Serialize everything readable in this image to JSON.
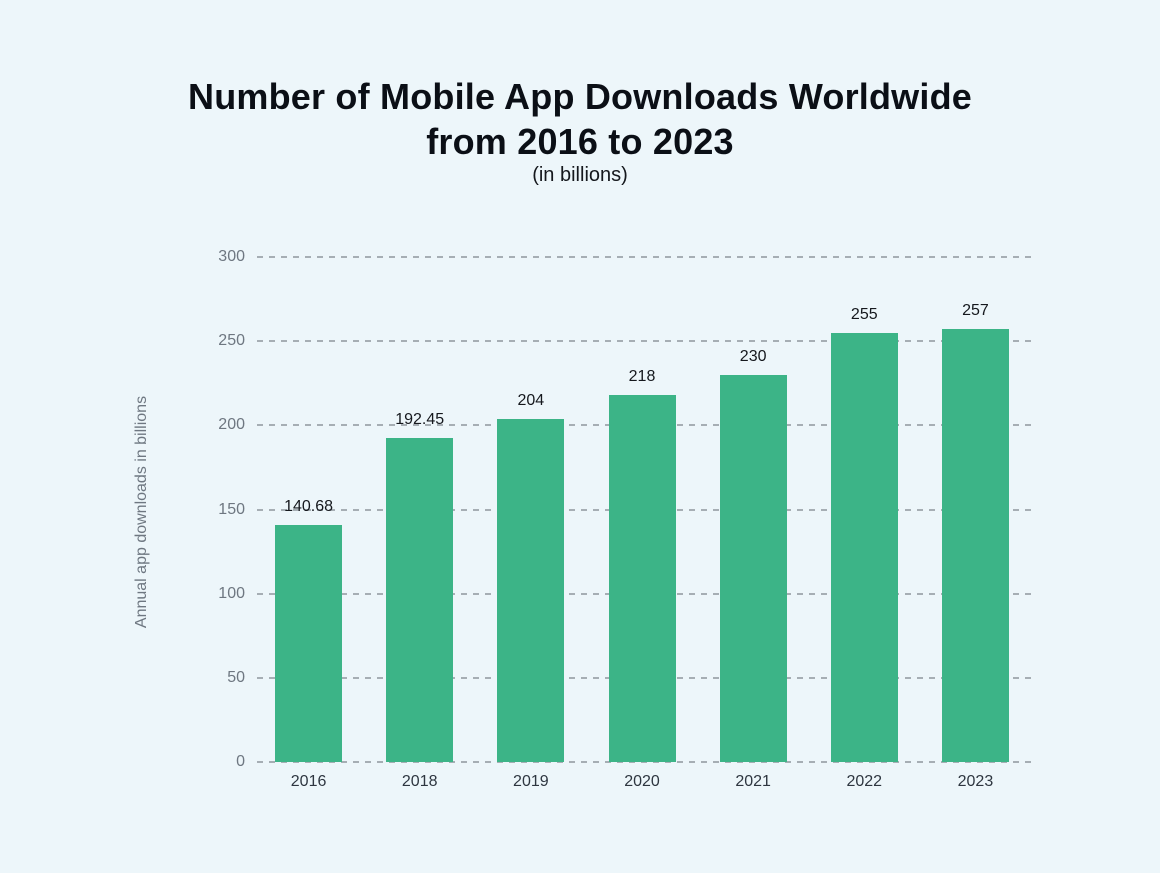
{
  "header": {
    "title_line1": "Number of Mobile App Downloads Worldwide",
    "title_line2": "from 2016 to 2023",
    "subtitle": "(in billions)"
  },
  "chart_data": {
    "type": "bar",
    "title": "Number of Mobile App Downloads Worldwide from 2016 to 2023",
    "subtitle": "(in billions)",
    "categories": [
      "2016",
      "2018",
      "2019",
      "2020",
      "2021",
      "2022",
      "2023"
    ],
    "values": [
      140.68,
      192.45,
      204,
      218,
      230,
      255,
      257
    ],
    "value_labels": [
      "140.68",
      "192.45",
      "204",
      "218",
      "230",
      "255",
      "257"
    ],
    "xlabel": "",
    "ylabel": "Annual app downloads in billions",
    "ylim": [
      0,
      300
    ],
    "yticks": [
      0,
      50,
      100,
      150,
      200,
      250,
      300
    ],
    "grid": "horizontal-dashed",
    "legend": "none",
    "colors": {
      "background": "#edf6fa",
      "bar": "#3cb487",
      "gridline": "#a6aeb4",
      "tick_label": "#6e7781",
      "axis_label": "#6e7781",
      "value_label": "#15181d",
      "category_label": "#2e3640",
      "title": "#0b0f16"
    }
  }
}
